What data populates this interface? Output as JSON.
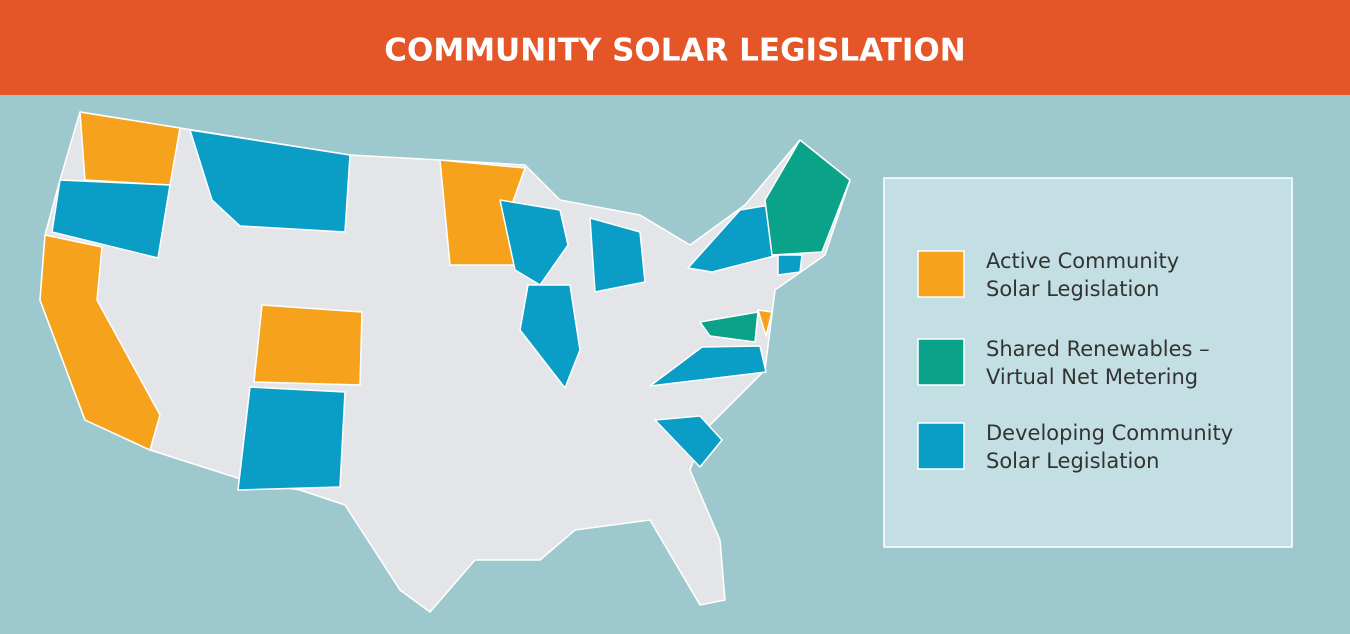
{
  "header": {
    "title": "COMMUNITY SOLAR LEGISLATION"
  },
  "legend": {
    "items": [
      {
        "lines": [
          "Active Community",
          "Solar Legislation"
        ],
        "color": "#f7a21d"
      },
      {
        "lines": [
          "Shared Renewables –",
          "Virtual Net Metering"
        ],
        "color": "#0aa389"
      },
      {
        "lines": [
          "Developing Community",
          "Solar Legislation"
        ],
        "color": "#0a9ec7"
      }
    ]
  }
}
